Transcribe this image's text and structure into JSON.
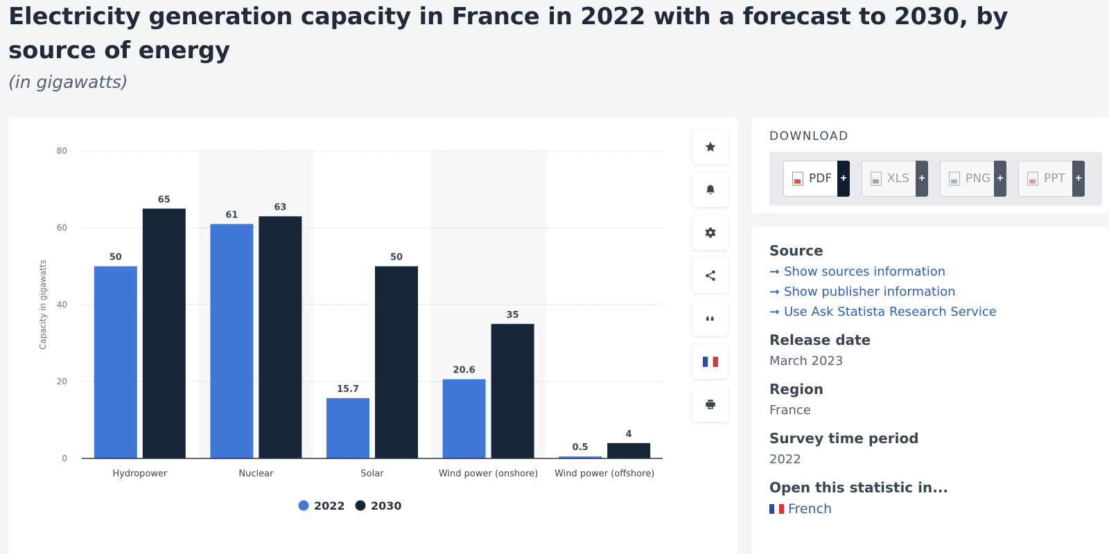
{
  "page": {
    "title": "Electricity generation capacity in France in 2022 with a forecast to 2030, by source of energy",
    "subtitle": "(in gigawatts)"
  },
  "toolbar": {
    "items": [
      {
        "name": "favorite",
        "icon": "star-icon"
      },
      {
        "name": "alert",
        "icon": "bell-icon"
      },
      {
        "name": "settings",
        "icon": "gear-icon"
      },
      {
        "name": "share",
        "icon": "share-icon"
      },
      {
        "name": "cite",
        "icon": "quote-icon"
      },
      {
        "name": "language",
        "icon": "french-flag-icon"
      },
      {
        "name": "print",
        "icon": "print-icon"
      }
    ]
  },
  "download": {
    "heading": "DOWNLOAD",
    "formats": [
      {
        "label": "PDF",
        "plus": "+",
        "color": "#d9534f"
      },
      {
        "label": "XLS",
        "plus": "+",
        "color": "#888888"
      },
      {
        "label": "PNG",
        "plus": "+",
        "color": "#8aa0c0"
      },
      {
        "label": "PPT",
        "plus": "+",
        "color": "#e07a5f"
      }
    ]
  },
  "info": {
    "source_heading": "Source",
    "links": [
      "Show sources information",
      "Show publisher information",
      "Use Ask Statista Research Service"
    ],
    "arrow": "➞",
    "release_heading": "Release date",
    "release_value": "March 2023",
    "region_heading": "Region",
    "region_value": "France",
    "survey_heading": "Survey time period",
    "survey_value": "2022",
    "open_heading": "Open this statistic in...",
    "open_link": "French"
  },
  "chart_data": {
    "type": "bar",
    "ylabel": "Capacity in gigawatts",
    "xlabel": "",
    "ylim": [
      0,
      80
    ],
    "yticks": [
      0,
      20,
      40,
      60,
      80
    ],
    "grid": true,
    "categories": [
      "Hydropower",
      "Nuclear",
      "Solar",
      "Wind power (onshore)",
      "Wind power (offshore)"
    ],
    "series": [
      {
        "name": "2022",
        "color": "#4178d8",
        "values": [
          50,
          61,
          15.7,
          20.6,
          0.5
        ]
      },
      {
        "name": "2030",
        "color": "#172538",
        "values": [
          65,
          63,
          50,
          35,
          4
        ]
      }
    ],
    "legend": "bottom-center"
  }
}
